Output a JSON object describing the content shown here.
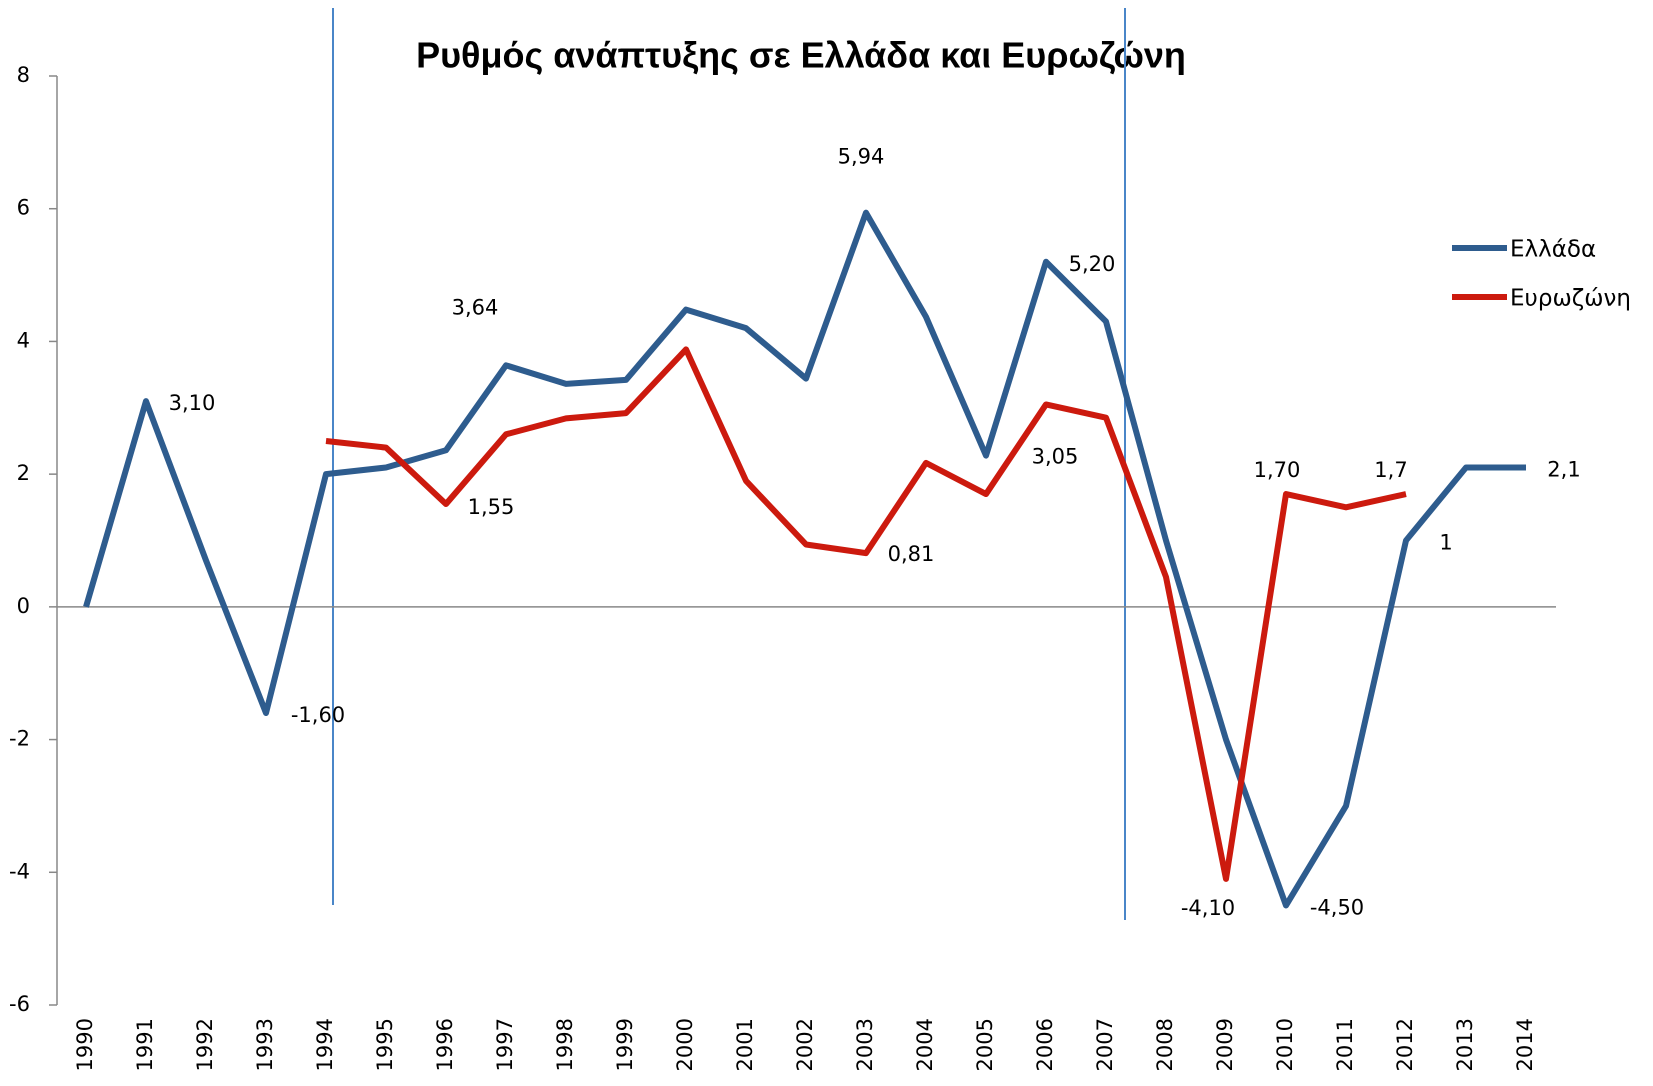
{
  "chart_data": {
    "type": "line",
    "title": "Ρυθμός ανάπτυξης σε Ελλάδα και Ευρωζώνη",
    "categories": [
      "1990",
      "1991",
      "1992",
      "1993",
      "1994",
      "1995",
      "1996",
      "1997",
      "1998",
      "1999",
      "2000",
      "2001",
      "2002",
      "2003",
      "2004",
      "2005",
      "2006",
      "2007",
      "2008",
      "2009",
      "2010",
      "2011",
      "2012",
      "2013",
      "2014"
    ],
    "series": [
      {
        "name": "Ελλάδα",
        "color": "#2e5c8e",
        "values": [
          0,
          3.1,
          0.7,
          -1.6,
          2.0,
          2.1,
          2.36,
          3.64,
          3.36,
          3.42,
          4.48,
          4.2,
          3.44,
          5.94,
          4.37,
          2.28,
          5.2,
          4.3,
          1.0,
          -2.0,
          -4.5,
          -3.0,
          1,
          2.1,
          2.1
        ],
        "value_labels": [
          null,
          "3,10",
          null,
          "-1,60",
          null,
          null,
          null,
          "3,64",
          null,
          null,
          null,
          null,
          null,
          "5,94",
          null,
          null,
          "5,20",
          null,
          null,
          null,
          "-4,50",
          null,
          "1",
          null,
          "2,1"
        ]
      },
      {
        "name": "Ευρωζώνη",
        "color": "#cc1a0e",
        "values": [
          null,
          null,
          null,
          null,
          2.5,
          2.4,
          1.55,
          2.6,
          2.84,
          2.92,
          3.88,
          1.9,
          0.94,
          0.81,
          2.17,
          1.7,
          3.05,
          2.85,
          0.45,
          -4.1,
          1.7,
          1.5,
          1.7,
          null,
          null
        ],
        "value_labels": [
          null,
          null,
          null,
          null,
          null,
          null,
          "1,55",
          null,
          null,
          null,
          null,
          null,
          null,
          "0,81",
          null,
          null,
          "3,05",
          null,
          null,
          "-4,10",
          "1,70",
          null,
          "1,7",
          null,
          null
        ]
      }
    ],
    "ylim": [
      -6,
      8
    ],
    "yticks": [
      -6,
      -4,
      -2,
      0,
      2,
      4,
      6,
      8
    ],
    "grid": false,
    "legend": "right"
  }
}
